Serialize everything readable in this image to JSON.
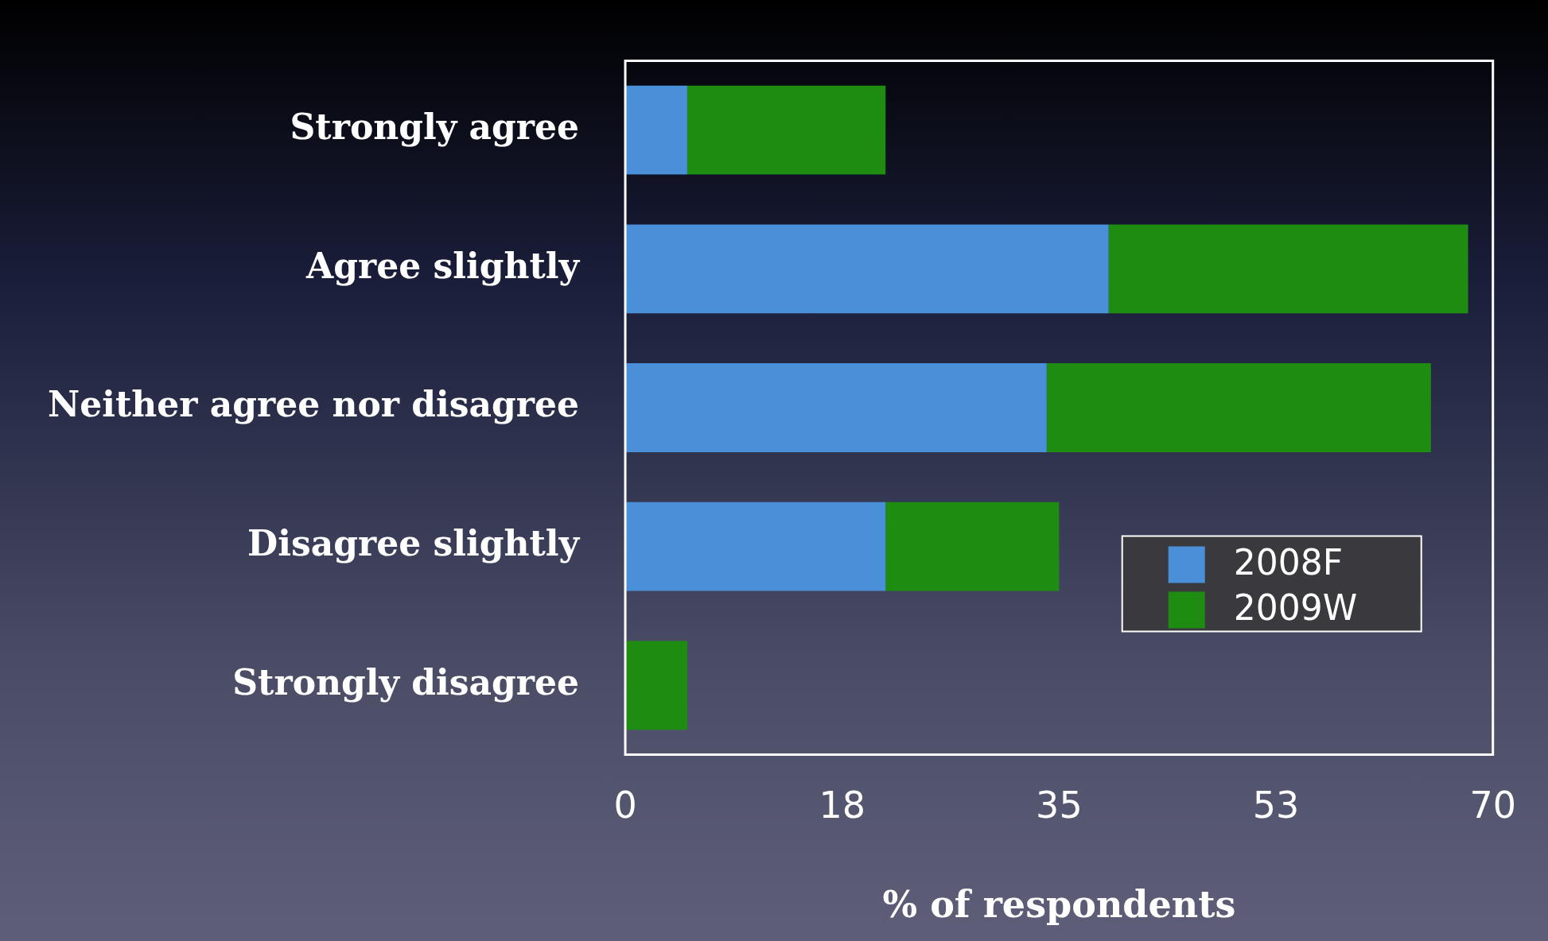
{
  "chart_data": {
    "type": "bar",
    "orientation": "horizontal",
    "stacked": true,
    "categories": [
      "Strongly agree",
      "Agree slightly",
      "Neither agree nor disagree",
      "Disagree slightly",
      "Strongly disagree"
    ],
    "series": [
      {
        "name": "2008F",
        "color": "#4a90d9",
        "values": [
          5,
          39,
          34,
          21,
          0
        ]
      },
      {
        "name": "2009W",
        "color": "#1e8c10",
        "values": [
          16,
          29,
          31,
          14,
          5
        ]
      }
    ],
    "xlabel": "% of respondents",
    "xlim": [
      0,
      70
    ],
    "xticks": [
      0,
      {
        "value": 17.5,
        "label": "18"
      },
      35,
      {
        "value": 52.5,
        "label": "53"
      },
      70
    ],
    "grid": false,
    "legend": "bottom right"
  }
}
